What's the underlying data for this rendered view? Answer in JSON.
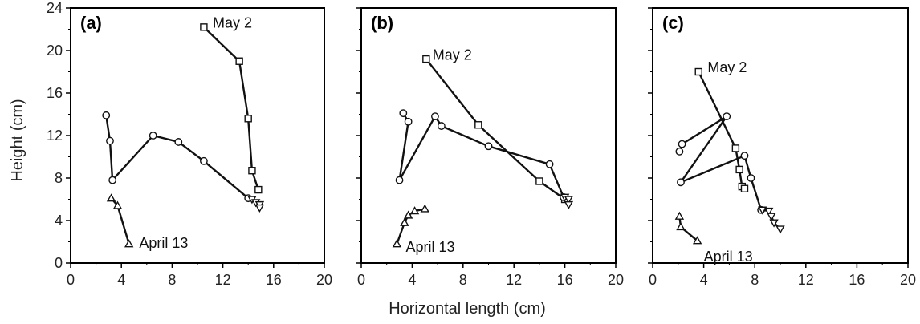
{
  "chart_data": {
    "type": "line",
    "xlabel": "Horizontal length (cm)",
    "ylabel": "Height (cm)",
    "xlim": [
      0,
      20
    ],
    "ylim": [
      0,
      24
    ],
    "xticks": [
      "0",
      "4",
      "8",
      "12",
      "16",
      "20"
    ],
    "yticks": [
      "0",
      "4",
      "8",
      "12",
      "16",
      "20",
      "24"
    ],
    "grid": false,
    "panels": [
      {
        "label": "(a)",
        "annotations": [
          {
            "text": "May 2",
            "x": 11.2,
            "y": 22.6
          },
          {
            "text": "April 13",
            "x": 5.4,
            "y": 1.9
          }
        ],
        "series": [
          {
            "marker": "square",
            "points": [
              [
                10.5,
                22.2
              ],
              [
                13.3,
                19.0
              ],
              [
                14.0,
                13.6
              ],
              [
                14.3,
                8.7
              ],
              [
                14.8,
                6.9
              ]
            ]
          },
          {
            "marker": "circle",
            "points": [
              [
                2.8,
                13.9
              ],
              [
                3.1,
                11.5
              ],
              [
                3.3,
                7.8
              ],
              [
                6.5,
                12.0
              ],
              [
                8.5,
                11.4
              ],
              [
                10.5,
                9.6
              ],
              [
                14.0,
                6.1
              ]
            ]
          },
          {
            "marker": "triangle-down",
            "points": [
              [
                14.3,
                6.0
              ],
              [
                14.6,
                5.7
              ],
              [
                14.9,
                5.5
              ],
              [
                14.9,
                5.2
              ]
            ]
          },
          {
            "marker": "triangle-up",
            "points": [
              [
                3.2,
                6.1
              ],
              [
                3.7,
                5.4
              ],
              [
                4.6,
                1.8
              ]
            ]
          }
        ]
      },
      {
        "label": "(b)",
        "annotations": [
          {
            "text": "May 2",
            "x": 5.6,
            "y": 19.6
          },
          {
            "text": "April 13",
            "x": 3.5,
            "y": 1.5
          }
        ],
        "series": [
          {
            "marker": "square",
            "points": [
              [
                5.1,
                19.2
              ],
              [
                9.2,
                13.0
              ],
              [
                14.0,
                7.7
              ],
              [
                16.0,
                6.0
              ]
            ]
          },
          {
            "marker": "circle",
            "points": [
              [
                3.3,
                14.1
              ],
              [
                3.7,
                13.3
              ],
              [
                3.0,
                7.8
              ],
              [
                5.8,
                13.8
              ],
              [
                6.3,
                12.9
              ],
              [
                10.0,
                11.0
              ],
              [
                14.8,
                9.3
              ],
              [
                15.9,
                6.2
              ]
            ]
          },
          {
            "marker": "triangle-down",
            "points": [
              [
                16.0,
                6.2
              ],
              [
                16.3,
                6.0
              ],
              [
                16.3,
                5.5
              ]
            ]
          },
          {
            "marker": "triangle-up",
            "points": [
              [
                2.8,
                1.8
              ],
              [
                3.4,
                3.8
              ],
              [
                3.7,
                4.5
              ],
              [
                4.2,
                4.9
              ],
              [
                5.0,
                5.1
              ]
            ]
          }
        ]
      },
      {
        "label": "(c)",
        "annotations": [
          {
            "text": "May 2",
            "x": 4.3,
            "y": 18.4
          },
          {
            "text": "April 13",
            "x": 4.0,
            "y": 0.6
          }
        ],
        "series": [
          {
            "marker": "square",
            "points": [
              [
                3.6,
                18.0
              ],
              [
                6.5,
                10.8
              ],
              [
                6.8,
                8.8
              ],
              [
                7.0,
                7.2
              ],
              [
                7.2,
                7.0
              ]
            ]
          },
          {
            "marker": "circle",
            "points": [
              [
                2.1,
                10.5
              ],
              [
                2.3,
                11.2
              ],
              [
                5.8,
                13.8
              ],
              [
                2.2,
                7.6
              ],
              [
                7.2,
                10.1
              ],
              [
                7.7,
                8.0
              ],
              [
                8.5,
                5.0
              ]
            ]
          },
          {
            "marker": "triangle-down",
            "points": [
              [
                8.6,
                5.0
              ],
              [
                9.1,
                4.9
              ],
              [
                9.3,
                4.4
              ],
              [
                9.5,
                3.8
              ],
              [
                10.0,
                3.2
              ]
            ]
          },
          {
            "marker": "triangle-up",
            "points": [
              [
                2.1,
                4.4
              ],
              [
                2.2,
                3.4
              ],
              [
                3.5,
                2.1
              ]
            ]
          }
        ]
      }
    ]
  }
}
